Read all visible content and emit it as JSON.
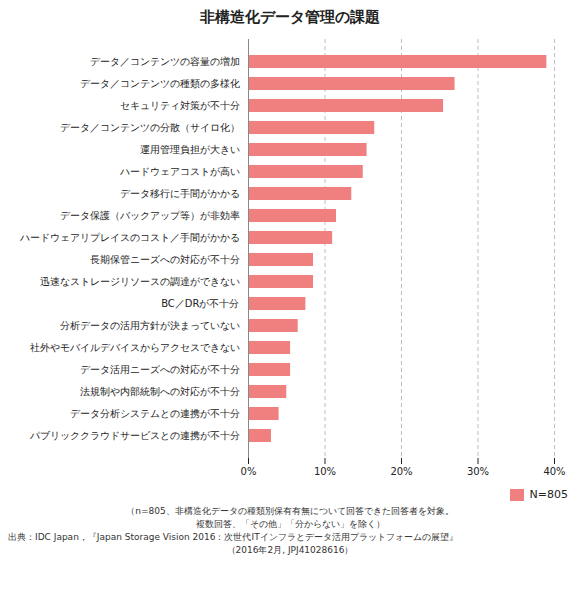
{
  "chart_data": {
    "type": "bar",
    "orientation": "horizontal",
    "title": "非構造化データ管理の課題",
    "categories": [
      "データ／コンテンツの容量の増加",
      "データ／コンテンツの種類の多様化",
      "セキュリティ対策が不十分",
      "データ／コンテンツの分散（サイロ化）",
      "運用管理負担が大きい",
      "ハードウェアコストが高い",
      "データ移行に手間がかかる",
      "データ保護（バックアップ等）が非効率",
      "ハードウェアリプレイスのコスト／手間がかかる",
      "長期保管ニーズへの対応が不十分",
      "迅速なストレージリソースの調達ができない",
      "BC／DRが不十分",
      "分析データの活用方針が決まっていない",
      "社外やモバイルデバイスからアクセスできない",
      "データ活用ニーズへの対応が不十分",
      "法規制や内部統制への対応が不十分",
      "データ分析システムとの連携が不十分",
      "パブリッククラウドサービスとの連携が不十分"
    ],
    "series": [
      {
        "name": "N=805",
        "color": "#f08080",
        "values": [
          39.0,
          27.0,
          25.5,
          16.5,
          15.5,
          15.0,
          13.5,
          11.5,
          11.0,
          8.5,
          8.5,
          7.5,
          6.5,
          5.5,
          5.5,
          5.0,
          4.0,
          3.0
        ]
      }
    ],
    "xlim": [
      0,
      40
    ],
    "xticks": [
      {
        "value": 0,
        "label": "0%"
      },
      {
        "value": 10,
        "label": "10%"
      },
      {
        "value": 20,
        "label": "20%"
      },
      {
        "value": 30,
        "label": "30%"
      },
      {
        "value": 40,
        "label": "40%"
      }
    ],
    "grid": true,
    "legend": "lower right",
    "annotations": [
      "（n=805、非構造化データの種類別保有有無について回答できた回答者を対象。",
      "複数回答、「その他」「分からない」を除く）",
      "出典：IDC Japan，『Japan Storage Vision 2016：次世代ITインフラとデータ活用プラットフォームの展望』",
      "（2016年2月, JPJ41028616）"
    ]
  }
}
